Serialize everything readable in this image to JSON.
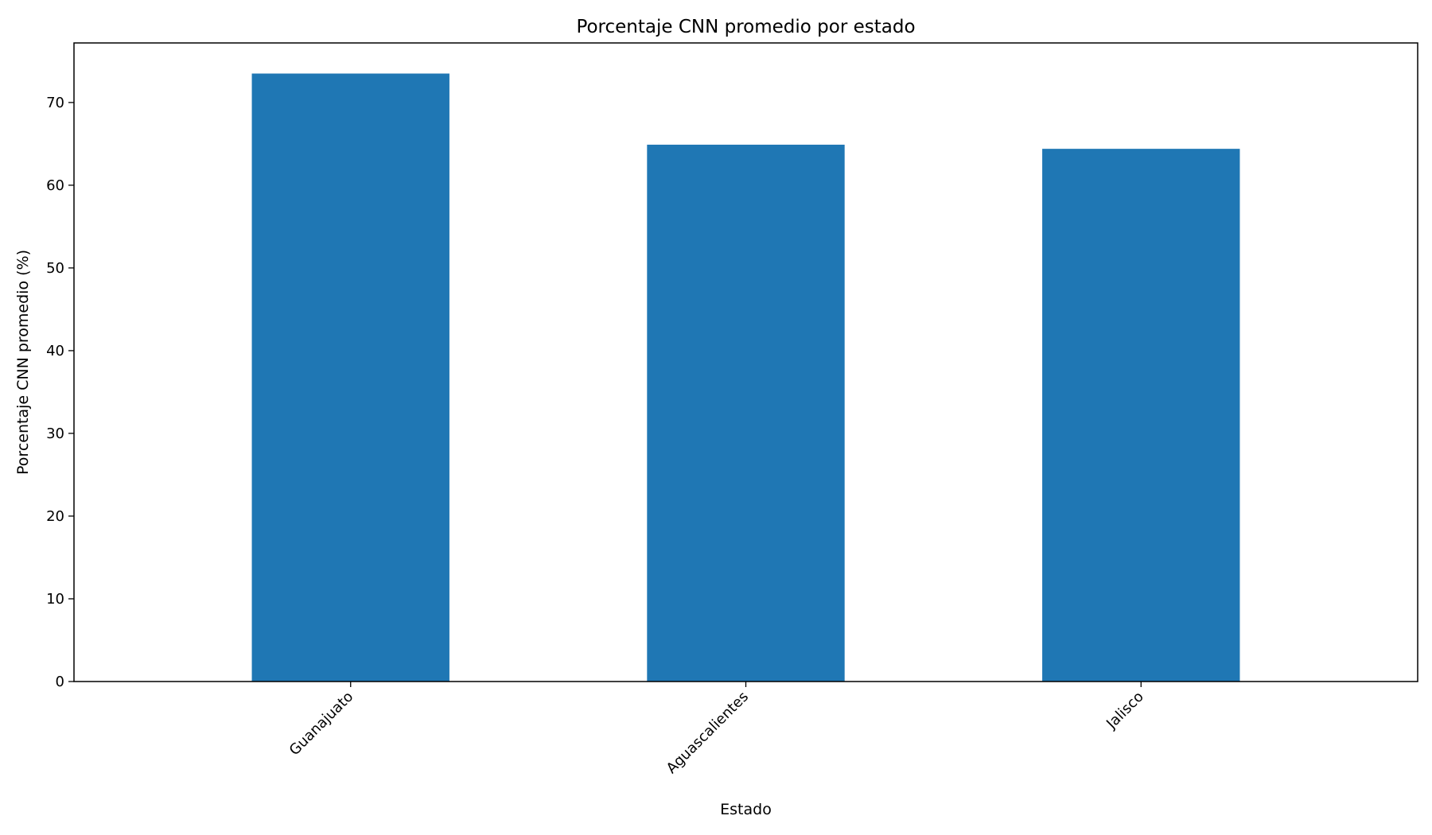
{
  "chart_data": {
    "type": "bar",
    "title": "Porcentaje CNN promedio por estado",
    "xlabel": "Estado",
    "ylabel": "Porcentaje CNN promedio (%)",
    "categories": [
      "Guanajuato",
      "Aguascalientes",
      "Jalisco"
    ],
    "values": [
      73.5,
      64.9,
      64.4
    ],
    "ylim": [
      0,
      77.2
    ],
    "yticks": [
      0,
      10,
      20,
      30,
      40,
      50,
      60,
      70
    ],
    "grid": false,
    "bar_color": "#1f77b4"
  }
}
